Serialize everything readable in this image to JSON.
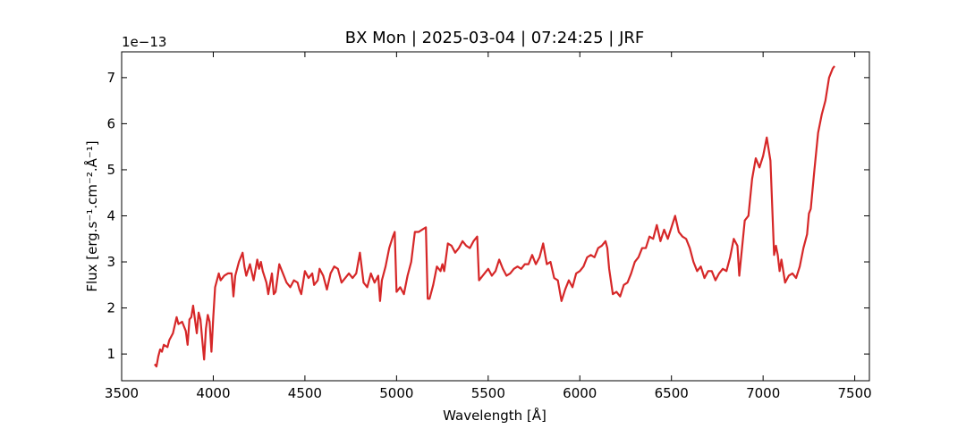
{
  "chart_data": {
    "type": "line",
    "title": "BX Mon | 2025-03-04 | 07:24:25 | JRF",
    "x_label": "Wavelength [Å]",
    "y_label": "Flux [erg.s⁻¹.cm⁻².Å⁻¹]",
    "y_offset_label": "1e−13",
    "xlim": [
      3500,
      7580
    ],
    "ylim": [
      0.42,
      7.56
    ],
    "xticks": [
      3500,
      4000,
      4500,
      5000,
      5500,
      6000,
      6500,
      7000,
      7500
    ],
    "yticks": [
      1,
      2,
      3,
      4,
      5,
      6,
      7
    ],
    "grid": false,
    "x": [
      3680,
      3690,
      3700,
      3710,
      3720,
      3730,
      3750,
      3760,
      3780,
      3800,
      3810,
      3830,
      3850,
      3860,
      3870,
      3880,
      3890,
      3900,
      3910,
      3920,
      3930,
      3940,
      3950,
      3960,
      3970,
      3980,
      3990,
      4000,
      4010,
      4020,
      4030,
      4040,
      4060,
      4080,
      4100,
      4110,
      4120,
      4140,
      4160,
      4170,
      4180,
      4200,
      4220,
      4240,
      4250,
      4260,
      4270,
      4290,
      4300,
      4320,
      4330,
      4340,
      4360,
      4380,
      4400,
      4420,
      4440,
      4460,
      4470,
      4480,
      4500,
      4520,
      4540,
      4550,
      4570,
      4580,
      4600,
      4620,
      4640,
      4660,
      4680,
      4700,
      4720,
      4740,
      4760,
      4780,
      4800,
      4820,
      4840,
      4860,
      4880,
      4900,
      4910,
      4920,
      4940,
      4960,
      4980,
      4990,
      5000,
      5020,
      5040,
      5060,
      5080,
      5100,
      5120,
      5140,
      5160,
      5170,
      5180,
      5200,
      5220,
      5240,
      5250,
      5260,
      5280,
      5300,
      5320,
      5340,
      5360,
      5380,
      5400,
      5420,
      5440,
      5450,
      5480,
      5500,
      5520,
      5540,
      5560,
      5580,
      5600,
      5620,
      5640,
      5660,
      5680,
      5700,
      5720,
      5740,
      5760,
      5780,
      5800,
      5820,
      5840,
      5860,
      5880,
      5900,
      5920,
      5940,
      5960,
      5980,
      6000,
      6020,
      6040,
      6060,
      6080,
      6100,
      6120,
      6140,
      6150,
      6160,
      6180,
      6200,
      6220,
      6240,
      6260,
      6280,
      6300,
      6320,
      6340,
      6360,
      6380,
      6400,
      6420,
      6440,
      6460,
      6480,
      6500,
      6520,
      6540,
      6560,
      6580,
      6600,
      6620,
      6640,
      6660,
      6680,
      6700,
      6720,
      6740,
      6760,
      6780,
      6800,
      6820,
      6840,
      6860,
      6870,
      6880,
      6900,
      6920,
      6940,
      6960,
      6980,
      7000,
      7020,
      7040,
      7060,
      7070,
      7080,
      7090,
      7100,
      7120,
      7140,
      7160,
      7180,
      7200,
      7220,
      7240,
      7250,
      7260,
      7280,
      7300,
      7320,
      7340,
      7360,
      7380,
      7390
    ],
    "series": [
      {
        "name": "BX Mon",
        "color": "#d62728",
        "values": [
          0.78,
          0.73,
          0.95,
          1.1,
          1.05,
          1.2,
          1.15,
          1.3,
          1.45,
          1.8,
          1.65,
          1.7,
          1.5,
          1.2,
          1.75,
          1.8,
          2.05,
          1.75,
          1.45,
          1.9,
          1.75,
          1.3,
          0.88,
          1.55,
          1.85,
          1.7,
          1.05,
          1.8,
          2.45,
          2.6,
          2.75,
          2.6,
          2.7,
          2.75,
          2.75,
          2.25,
          2.7,
          3.0,
          3.2,
          2.9,
          2.7,
          2.95,
          2.6,
          3.05,
          2.85,
          3.0,
          2.8,
          2.55,
          2.3,
          2.75,
          2.3,
          2.35,
          2.95,
          2.75,
          2.55,
          2.45,
          2.6,
          2.55,
          2.4,
          2.3,
          2.8,
          2.65,
          2.75,
          2.5,
          2.6,
          2.85,
          2.7,
          2.4,
          2.75,
          2.9,
          2.85,
          2.55,
          2.65,
          2.75,
          2.65,
          2.75,
          3.2,
          2.55,
          2.45,
          2.75,
          2.55,
          2.7,
          2.15,
          2.6,
          2.9,
          3.3,
          3.55,
          3.65,
          2.35,
          2.45,
          2.3,
          2.7,
          3.0,
          3.65,
          3.65,
          3.7,
          3.75,
          2.2,
          2.2,
          2.5,
          2.9,
          2.8,
          2.95,
          2.8,
          3.4,
          3.35,
          3.2,
          3.3,
          3.45,
          3.35,
          3.3,
          3.45,
          3.55,
          2.6,
          2.75,
          2.85,
          2.7,
          2.8,
          3.05,
          2.85,
          2.7,
          2.75,
          2.85,
          2.9,
          2.85,
          2.95,
          2.95,
          3.15,
          2.95,
          3.1,
          3.4,
          2.95,
          3.0,
          2.65,
          2.6,
          2.15,
          2.4,
          2.6,
          2.45,
          2.75,
          2.8,
          2.9,
          3.1,
          3.15,
          3.1,
          3.3,
          3.35,
          3.45,
          3.3,
          2.85,
          2.3,
          2.35,
          2.25,
          2.5,
          2.55,
          2.75,
          3.0,
          3.1,
          3.3,
          3.3,
          3.55,
          3.5,
          3.8,
          3.45,
          3.7,
          3.5,
          3.75,
          4.0,
          3.65,
          3.55,
          3.5,
          3.3,
          3.0,
          2.8,
          2.9,
          2.65,
          2.8,
          2.8,
          2.6,
          2.75,
          2.85,
          2.8,
          3.1,
          3.5,
          3.35,
          2.7,
          3.1,
          3.9,
          4.0,
          4.8,
          5.25,
          5.05,
          5.3,
          5.7,
          5.2,
          3.15,
          3.35,
          3.15,
          2.8,
          3.05,
          2.55,
          2.7,
          2.75,
          2.65,
          2.9,
          3.3,
          3.6,
          4.05,
          4.15,
          5.0,
          5.8,
          6.2,
          6.5,
          7.0,
          7.2,
          7.25
        ]
      }
    ]
  }
}
